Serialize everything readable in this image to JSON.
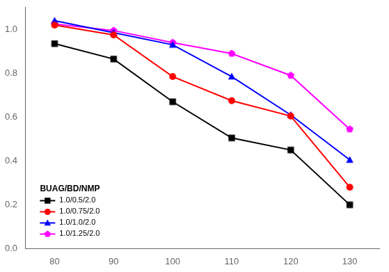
{
  "chart_data": {
    "type": "line",
    "x": [
      80,
      90,
      100,
      110,
      120,
      130
    ],
    "series": [
      {
        "name": "1.0/0.5/2.0",
        "color": "#000000",
        "marker": "square",
        "values": [
          0.935,
          0.865,
          0.67,
          0.505,
          0.45,
          0.2
        ]
      },
      {
        "name": "1.0/0.75/2.0",
        "color": "#ff0000",
        "marker": "circle",
        "values": [
          1.02,
          0.975,
          0.785,
          0.675,
          0.605,
          0.28
        ]
      },
      {
        "name": "1.0/1.0/2.0",
        "color": "#0000ff",
        "marker": "triangle",
        "values": [
          1.04,
          0.985,
          0.93,
          0.785,
          0.61,
          0.405
        ]
      },
      {
        "name": "1.0/1.25/2.0",
        "color": "#ff00ff",
        "marker": "pentagon",
        "values": [
          1.025,
          0.995,
          0.94,
          0.89,
          0.79,
          0.545
        ]
      }
    ],
    "legend_title": "BUAG/BD/NMP",
    "legend": "lower left",
    "xlim": [
      75,
      135
    ],
    "ylim": [
      0.0,
      1.1
    ],
    "xticks": [
      80,
      90,
      100,
      110,
      120,
      130
    ],
    "yticks": [
      {
        "value": 0.0,
        "label": "0.0"
      },
      0.2,
      0.4,
      0.6,
      0.8,
      {
        "value": 1.0,
        "label": "1.0"
      }
    ],
    "grid": false
  }
}
